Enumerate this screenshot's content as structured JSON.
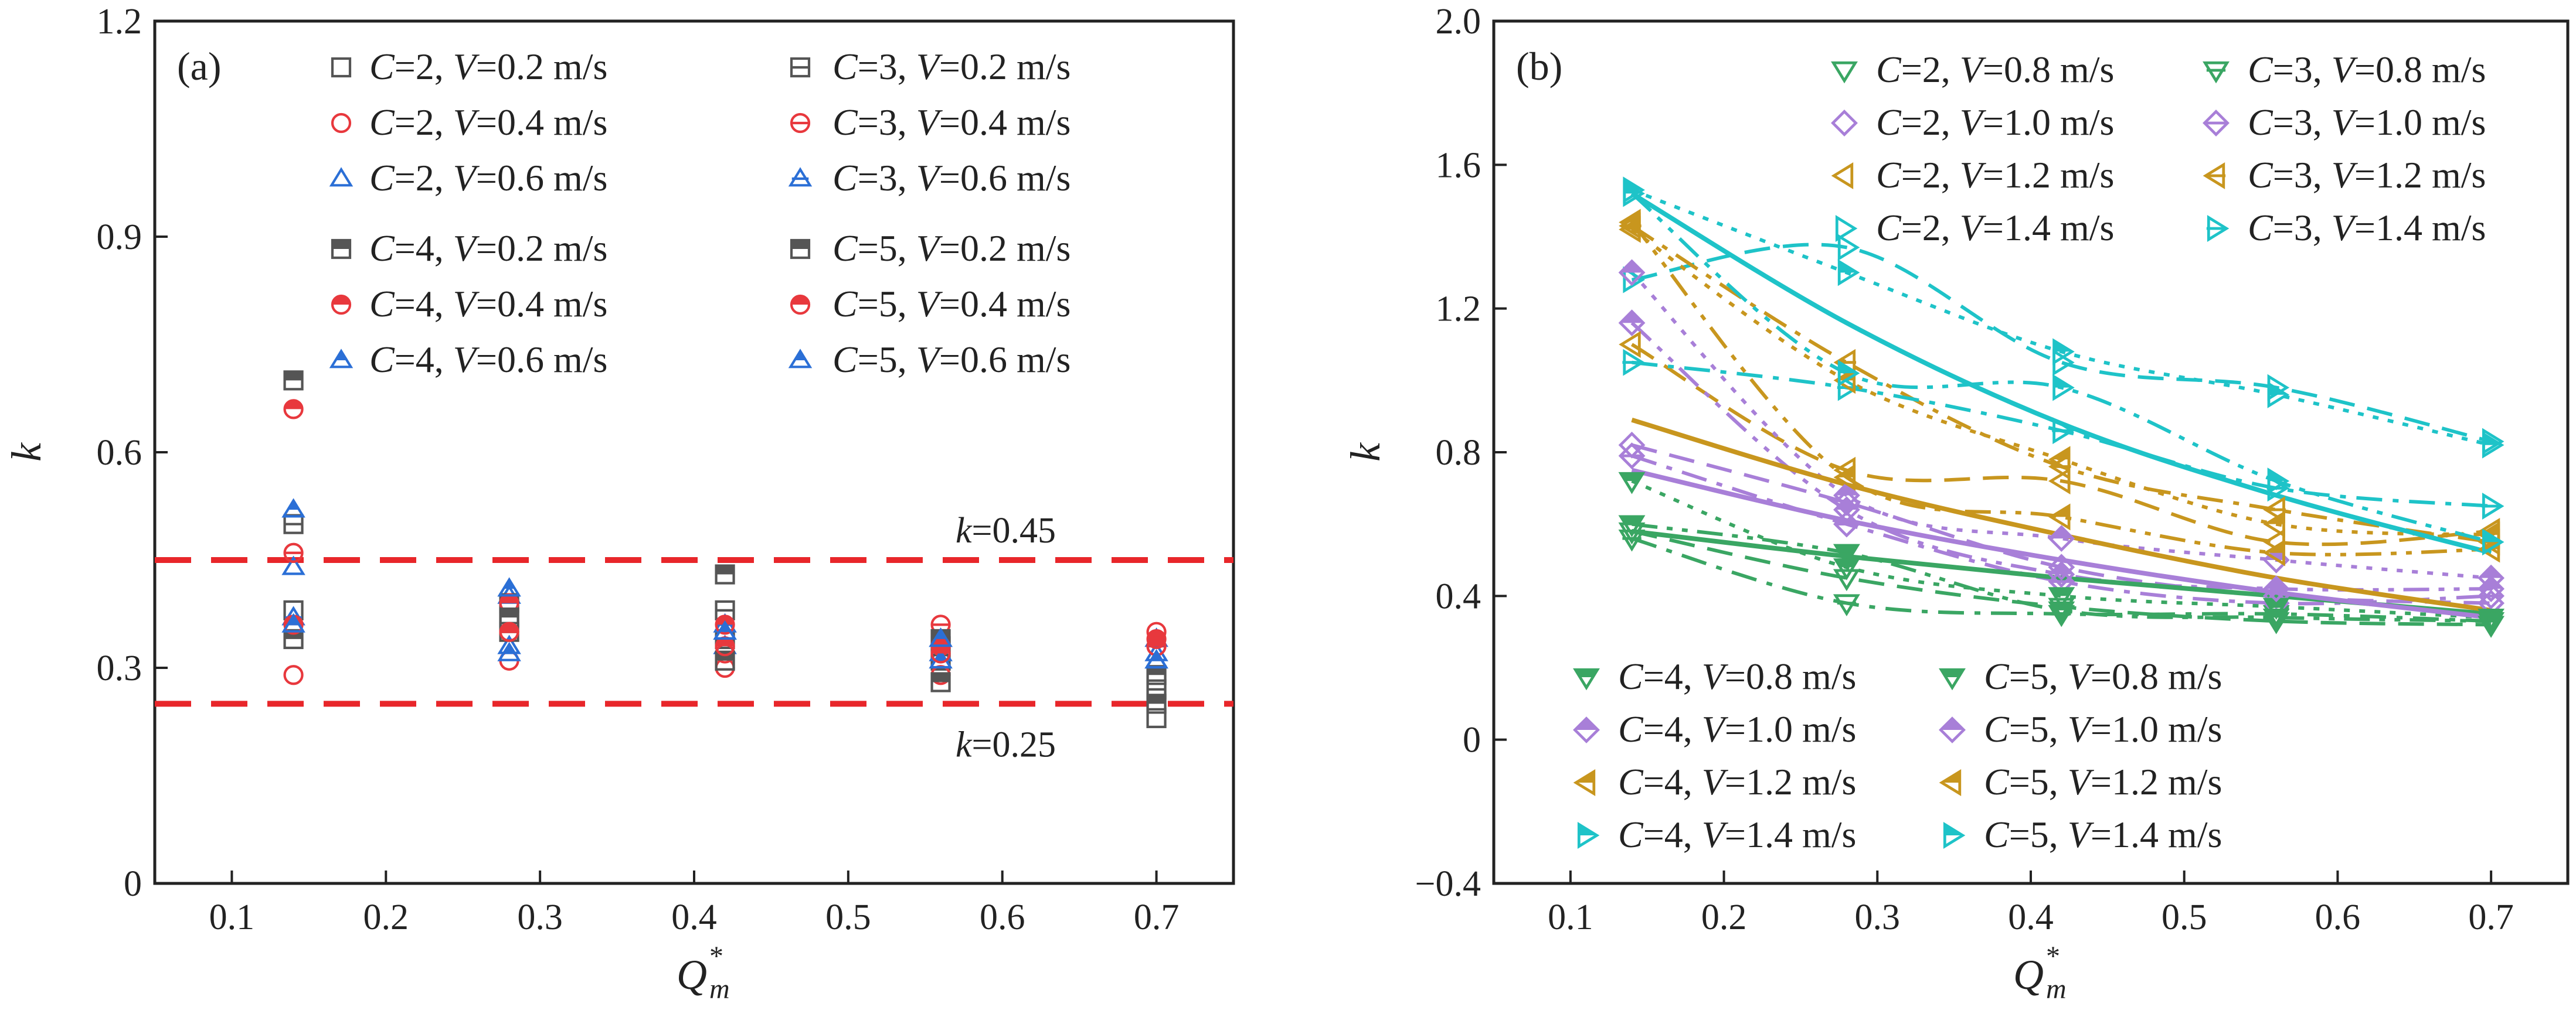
{
  "chart_data": [
    {
      "type": "scatter",
      "panel_label": "(a)",
      "xlabel": "Q",
      "xlabel_sub": "m",
      "xlabel_sup": "*",
      "ylabel": "k",
      "xlim": [
        0.05,
        0.75
      ],
      "ylim": [
        0,
        1.2
      ],
      "xticks": [
        0.1,
        0.2,
        0.3,
        0.4,
        0.5,
        0.6,
        0.7
      ],
      "yticks": [
        0,
        0.3,
        0.6,
        0.9,
        1.2
      ],
      "ytick_labels": [
        "0",
        "0.3",
        "0.6",
        "0.9",
        "1.2"
      ],
      "reference_lines": [
        {
          "y": 0.45,
          "label": "k=0.45",
          "label_k": "k",
          "label_val": "=0.45",
          "color": "#e8262a"
        },
        {
          "y": 0.25,
          "label": "k=0.25",
          "label_k": "k",
          "label_val": "=0.25",
          "color": "#e8262a"
        }
      ],
      "colors": {
        "V02": "#555555",
        "V04": "#e8383d",
        "V06": "#2b6fd6"
      },
      "series": [
        {
          "name": "C=2, V=0.2 m/s",
          "C": "2",
          "V": "0.2",
          "marker": "square-open",
          "color": "#555555",
          "x": [
            0.14,
            0.28,
            0.42,
            0.56,
            0.7
          ],
          "y": [
            0.38,
            0.37,
            0.34,
            0.31,
            0.23
          ]
        },
        {
          "name": "C=2, V=0.4 m/s",
          "C": "2",
          "V": "0.4",
          "marker": "circle-open",
          "color": "#e8383d",
          "x": [
            0.14,
            0.28,
            0.42,
            0.56,
            0.7
          ],
          "y": [
            0.29,
            0.31,
            0.3,
            0.29,
            0.35
          ]
        },
        {
          "name": "C=2, V=0.6 m/s",
          "C": "2",
          "V": "0.6",
          "marker": "triangle-open",
          "color": "#2b6fd6",
          "x": [
            0.14,
            0.28,
            0.42,
            0.56,
            0.7
          ],
          "y": [
            0.44,
            0.33,
            0.33,
            0.32,
            0.32
          ]
        },
        {
          "name": "C=3, V=0.2 m/s",
          "C": "3",
          "V": "0.2",
          "marker": "square-hbar",
          "color": "#555555",
          "x": [
            0.14,
            0.28,
            0.42,
            0.56,
            0.7
          ],
          "y": [
            0.5,
            0.35,
            0.38,
            0.33,
            0.27
          ]
        },
        {
          "name": "C=3, V=0.4 m/s",
          "C": "3",
          "V": "0.4",
          "marker": "circle-hbar",
          "color": "#e8383d",
          "x": [
            0.14,
            0.28,
            0.42,
            0.56,
            0.7
          ],
          "y": [
            0.46,
            0.35,
            0.32,
            0.36,
            0.33
          ]
        },
        {
          "name": "C=3, V=0.6 m/s",
          "C": "3",
          "V": "0.6",
          "marker": "triangle-hbar",
          "color": "#2b6fd6",
          "x": [
            0.14,
            0.28,
            0.42,
            0.56,
            0.7
          ],
          "y": [
            0.37,
            0.4,
            0.36,
            0.34,
            0.34
          ]
        },
        {
          "name": "C=4, V=0.2 m/s",
          "C": "4",
          "V": "0.2",
          "marker": "square-half",
          "color": "#555555",
          "x": [
            0.14,
            0.28,
            0.42,
            0.56,
            0.7
          ],
          "y": [
            0.7,
            0.39,
            0.43,
            0.34,
            0.29
          ]
        },
        {
          "name": "C=4, V=0.4 m/s",
          "C": "4",
          "V": "0.4",
          "marker": "circle-half",
          "color": "#e8383d",
          "x": [
            0.14,
            0.28,
            0.42,
            0.56,
            0.7
          ],
          "y": [
            0.66,
            0.39,
            0.36,
            0.33,
            0.34
          ]
        },
        {
          "name": "C=4, V=0.6 m/s",
          "C": "4",
          "V": "0.6",
          "marker": "triangle-half",
          "color": "#2b6fd6",
          "x": [
            0.14,
            0.28,
            0.42,
            0.56,
            0.7
          ],
          "y": [
            0.52,
            0.41,
            0.35,
            0.31,
            0.31
          ]
        },
        {
          "name": "C=5, V=0.2 m/s",
          "C": "5",
          "V": "0.2",
          "marker": "square-half",
          "color": "#555555",
          "x": [
            0.14,
            0.28,
            0.42,
            0.56,
            0.7
          ],
          "y": [
            0.34,
            0.37,
            0.31,
            0.28,
            0.25
          ]
        },
        {
          "name": "C=5, V=0.4 m/s",
          "C": "5",
          "V": "0.4",
          "marker": "circle-half",
          "color": "#e8383d",
          "x": [
            0.14,
            0.28,
            0.42,
            0.56,
            0.7
          ],
          "y": [
            0.36,
            0.35,
            0.33,
            0.32,
            0.33
          ]
        },
        {
          "name": "C=5, V=0.6 m/s",
          "C": "5",
          "V": "0.6",
          "marker": "triangle-half",
          "color": "#2b6fd6",
          "x": [
            0.14,
            0.28,
            0.42,
            0.56,
            0.7
          ],
          "y": [
            0.36,
            0.32,
            0.35,
            0.34,
            0.31
          ]
        }
      ]
    },
    {
      "type": "scatter",
      "panel_label": "(b)",
      "xlabel": "Q",
      "xlabel_sub": "m",
      "xlabel_sup": "*",
      "ylabel": "k",
      "xlim": [
        0.05,
        0.75
      ],
      "ylim": [
        -0.4,
        2.0
      ],
      "xticks": [
        0.1,
        0.2,
        0.3,
        0.4,
        0.5,
        0.6,
        0.7
      ],
      "yticks": [
        -0.4,
        0,
        0.4,
        0.8,
        1.2,
        1.6,
        2.0
      ],
      "ytick_labels": [
        "−0.4",
        "0",
        "0.4",
        "0.8",
        "1.2",
        "1.6",
        "2.0"
      ],
      "colors": {
        "V08": "#3aa663",
        "V10": "#a87fd8",
        "V12": "#c8961e",
        "V14": "#1ec3c8"
      },
      "series": [
        {
          "name": "C=2, V=0.8 m/s",
          "C": "2",
          "V": "0.8",
          "marker": "tri-down-open",
          "color": "#3aa663",
          "line": "dash",
          "x": [
            0.14,
            0.28,
            0.42,
            0.56,
            0.7
          ],
          "y": [
            0.58,
            0.45,
            0.37,
            0.33,
            0.32
          ]
        },
        {
          "name": "C=2, V=1.0 m/s",
          "C": "2",
          "V": "1.0",
          "marker": "diamond-open",
          "color": "#a87fd8",
          "line": "dash",
          "x": [
            0.14,
            0.28,
            0.42,
            0.56,
            0.7
          ],
          "y": [
            0.82,
            0.66,
            0.48,
            0.4,
            0.38
          ]
        },
        {
          "name": "C=2, V=1.2 m/s",
          "C": "2",
          "V": "1.2",
          "marker": "tri-left-open",
          "color": "#c8961e",
          "line": "dash",
          "x": [
            0.14,
            0.28,
            0.42,
            0.56,
            0.7
          ],
          "y": [
            1.1,
            0.75,
            0.72,
            0.55,
            0.58
          ]
        },
        {
          "name": "C=2, V=1.4 m/s",
          "C": "2",
          "V": "1.4",
          "marker": "tri-right-open",
          "color": "#1ec3c8",
          "line": "dash",
          "x": [
            0.14,
            0.28,
            0.42,
            0.56,
            0.7
          ],
          "y": [
            1.28,
            1.37,
            1.05,
            0.98,
            0.83
          ]
        },
        {
          "name": "C=3, V=0.8 m/s",
          "C": "3",
          "V": "0.8",
          "marker": "tri-down-hbar",
          "color": "#3aa663",
          "line": "dashdot",
          "x": [
            0.14,
            0.28,
            0.42,
            0.56,
            0.7
          ],
          "y": [
            0.56,
            0.38,
            0.35,
            0.35,
            0.33
          ]
        },
        {
          "name": "C=3, V=1.0 m/s",
          "C": "3",
          "V": "1.0",
          "marker": "diamond-hbar",
          "color": "#a87fd8",
          "line": "dashdot",
          "x": [
            0.14,
            0.28,
            0.42,
            0.56,
            0.7
          ],
          "y": [
            0.79,
            0.6,
            0.44,
            0.38,
            0.4
          ]
        },
        {
          "name": "C=3, V=1.2 m/s",
          "C": "3",
          "V": "1.2",
          "marker": "tri-left-hbar",
          "color": "#c8961e",
          "line": "dashdot",
          "x": [
            0.14,
            0.28,
            0.42,
            0.56,
            0.7
          ],
          "y": [
            1.43,
            1.05,
            0.76,
            0.64,
            0.55
          ]
        },
        {
          "name": "C=3, V=1.4 m/s",
          "C": "3",
          "V": "1.4",
          "marker": "tri-right-hbar",
          "color": "#1ec3c8",
          "line": "dashdot",
          "x": [
            0.14,
            0.28,
            0.42,
            0.56,
            0.7
          ],
          "y": [
            1.05,
            0.98,
            0.86,
            0.7,
            0.65
          ]
        },
        {
          "name": "C=4, V=0.8 m/s",
          "C": "4",
          "V": "0.8",
          "marker": "tri-down-half",
          "color": "#3aa663",
          "line": "dot",
          "x": [
            0.14,
            0.28,
            0.42,
            0.56,
            0.7
          ],
          "y": [
            0.72,
            0.48,
            0.4,
            0.37,
            0.34
          ]
        },
        {
          "name": "C=4, V=1.0 m/s",
          "C": "4",
          "V": "1.0",
          "marker": "diamond-half",
          "color": "#a87fd8",
          "line": "dot",
          "x": [
            0.14,
            0.28,
            0.42,
            0.56,
            0.7
          ],
          "y": [
            1.3,
            0.68,
            0.56,
            0.5,
            0.45
          ]
        },
        {
          "name": "C=4, V=1.2 m/s",
          "C": "4",
          "V": "1.2",
          "marker": "tri-left-half",
          "color": "#c8961e",
          "line": "dot",
          "x": [
            0.14,
            0.28,
            0.42,
            0.56,
            0.7
          ],
          "y": [
            1.42,
            1.0,
            0.78,
            0.6,
            0.57
          ]
        },
        {
          "name": "C=4, V=1.4 m/s",
          "C": "4",
          "V": "1.4",
          "marker": "tri-right-half",
          "color": "#1ec3c8",
          "line": "dot",
          "x": [
            0.14,
            0.28,
            0.42,
            0.56,
            0.7
          ],
          "y": [
            1.53,
            1.3,
            1.08,
            0.96,
            0.82
          ]
        },
        {
          "name": "C=5, V=0.8 m/s",
          "C": "5",
          "V": "0.8",
          "marker": "tri-down-half",
          "color": "#3aa663",
          "line": "dashdotdot",
          "x": [
            0.14,
            0.28,
            0.42,
            0.56,
            0.7
          ],
          "y": [
            0.6,
            0.52,
            0.36,
            0.34,
            0.33
          ]
        },
        {
          "name": "C=5, V=1.0 m/s",
          "C": "5",
          "V": "1.0",
          "marker": "diamond-half",
          "color": "#a87fd8",
          "line": "dashdotdot",
          "x": [
            0.14,
            0.28,
            0.42,
            0.56,
            0.7
          ],
          "y": [
            1.16,
            0.64,
            0.46,
            0.42,
            0.42
          ]
        },
        {
          "name": "C=5, V=1.2 m/s",
          "C": "5",
          "V": "1.2",
          "marker": "tri-left-half",
          "color": "#c8961e",
          "line": "dashdotdot",
          "x": [
            0.14,
            0.28,
            0.42,
            0.56,
            0.7
          ],
          "y": [
            1.44,
            0.73,
            0.62,
            0.52,
            0.53
          ]
        },
        {
          "name": "C=5, V=1.4 m/s",
          "C": "5",
          "V": "1.4",
          "marker": "tri-right-half",
          "color": "#1ec3c8",
          "line": "dashdotdot",
          "x": [
            0.14,
            0.28,
            0.42,
            0.56,
            0.7
          ],
          "y": [
            1.52,
            1.02,
            0.98,
            0.72,
            0.55
          ]
        }
      ],
      "fits": [
        {
          "name": "fit V=0.8 m/s",
          "color": "#3aa663",
          "x": [
            0.14,
            0.28,
            0.42,
            0.56,
            0.7
          ],
          "y": [
            0.58,
            0.51,
            0.45,
            0.4,
            0.35
          ]
        },
        {
          "name": "fit V=1.0 m/s",
          "color": "#a87fd8",
          "x": [
            0.14,
            0.28,
            0.42,
            0.56,
            0.7
          ],
          "y": [
            0.75,
            0.61,
            0.5,
            0.41,
            0.34
          ]
        },
        {
          "name": "fit V=1.2 m/s",
          "color": "#c8961e",
          "x": [
            0.14,
            0.28,
            0.42,
            0.56,
            0.7
          ],
          "y": [
            0.89,
            0.71,
            0.57,
            0.45,
            0.36
          ]
        },
        {
          "name": "fit V=1.4 m/s",
          "color": "#1ec3c8",
          "x": [
            0.14,
            0.28,
            0.42,
            0.56,
            0.7
          ],
          "y": [
            1.52,
            1.16,
            0.88,
            0.68,
            0.52
          ]
        }
      ]
    }
  ]
}
